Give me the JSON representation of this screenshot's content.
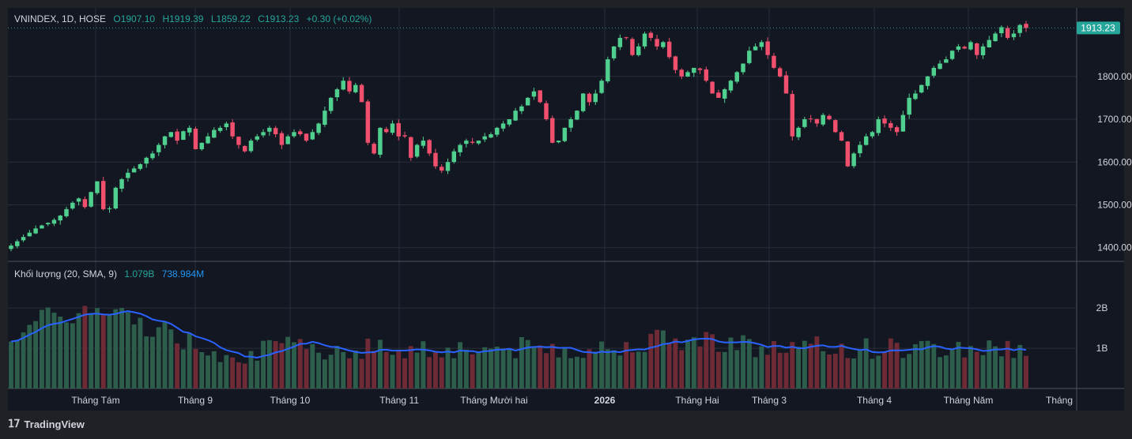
{
  "header": {
    "symbol": "VNINDEX, 1D, HOSE",
    "open": "O1907.10",
    "high": "H1919.39",
    "low": "L1859.22",
    "close": "C1913.23",
    "change": "+0.30 (+0.02%)"
  },
  "volume_legend": {
    "label": "Khối lượng (20, SMA, 9)",
    "volume": "1.079B",
    "sma": "738.984M"
  },
  "last_price": "1913.23",
  "brand": "TradingView",
  "colors": {
    "background": "#131722",
    "up": "#26a69a",
    "down": "#ef5350",
    "up_candle": "#4fd08e",
    "down_candle": "#f0506e",
    "sma_line": "#2962ff",
    "grid": "#2a2e39"
  },
  "chart_data": [
    {
      "type": "candlestick",
      "title": "VNINDEX, 1D, HOSE",
      "x_tick_labels": [
        "Tháng Tám",
        "Tháng 9",
        "Tháng 10",
        "Tháng 11",
        "Tháng Mười hai",
        "2026",
        "Tháng Hai",
        "Tháng 3",
        "Tháng 4",
        "Tháng Năm",
        "Tháng"
      ],
      "y_tick_labels": [
        "1400.00",
        "1500.00",
        "1600.00",
        "1700.00",
        "1800.00"
      ],
      "ylim": [
        1370,
        1960
      ],
      "close_series": [
        1405,
        1415,
        1425,
        1435,
        1445,
        1452,
        1458,
        1465,
        1475,
        1490,
        1505,
        1515,
        1495,
        1530,
        1555,
        1490,
        1492,
        1540,
        1560,
        1575,
        1585,
        1595,
        1610,
        1620,
        1640,
        1660,
        1670,
        1650,
        1672,
        1680,
        1630,
        1645,
        1660,
        1675,
        1680,
        1690,
        1660,
        1640,
        1625,
        1650,
        1660,
        1670,
        1680,
        1665,
        1640,
        1660,
        1670,
        1665,
        1650,
        1670,
        1690,
        1720,
        1750,
        1770,
        1790,
        1765,
        1780,
        1740,
        1645,
        1620,
        1680,
        1670,
        1690,
        1660,
        1660,
        1610,
        1640,
        1650,
        1620,
        1590,
        1580,
        1600,
        1625,
        1640,
        1650,
        1645,
        1650,
        1660,
        1665,
        1680,
        1690,
        1700,
        1720,
        1730,
        1750,
        1765,
        1740,
        1700,
        1645,
        1650,
        1680,
        1700,
        1720,
        1760,
        1740,
        1760,
        1790,
        1840,
        1870,
        1890,
        1890,
        1850,
        1870,
        1900,
        1890,
        1870,
        1880,
        1845,
        1815,
        1800,
        1810,
        1820,
        1815,
        1790,
        1760,
        1750,
        1770,
        1790,
        1810,
        1830,
        1860,
        1870,
        1880,
        1850,
        1820,
        1800,
        1760,
        1660,
        1680,
        1700,
        1700,
        1690,
        1710,
        1700,
        1670,
        1650,
        1590,
        1620,
        1640,
        1660,
        1670,
        1700,
        1690,
        1680,
        1670,
        1710,
        1750,
        1760,
        1780,
        1800,
        1820,
        1830,
        1840,
        1860,
        1870,
        1865,
        1880,
        1850,
        1870,
        1885,
        1900,
        1915,
        1890,
        1900,
        1920,
        1913
      ],
      "sma_line_note": "volume SMA 9",
      "volume_tick_labels": [
        "1B",
        "2B"
      ]
    }
  ]
}
